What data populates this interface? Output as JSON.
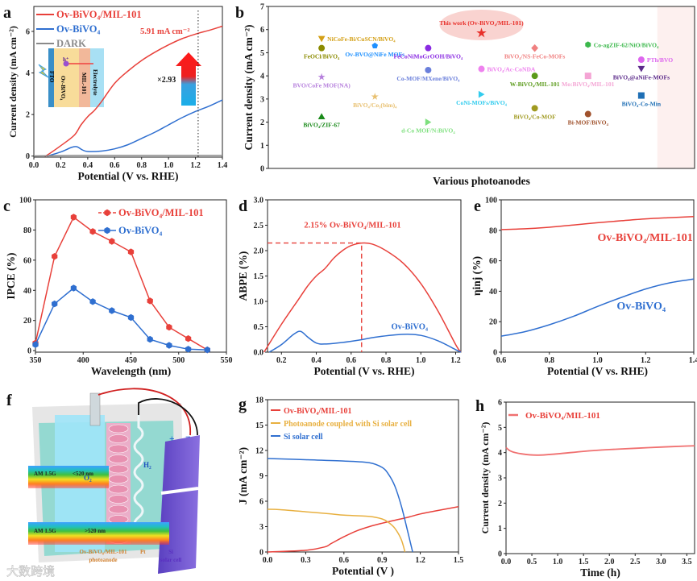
{
  "colors": {
    "red": "#e8403a",
    "blue": "#2f6fd0",
    "gray": "#8a8a8a",
    "orange": "#e8b040",
    "shade": "#fbe3e1",
    "axis": "#222222"
  },
  "chart_data": [
    {
      "id": "a",
      "panel_label": "a",
      "type": "line",
      "xlabel": "Potential (V vs. RHE)",
      "ylabel": "Current density (mA cm⁻²)",
      "xlim": [
        0,
        1.4
      ],
      "ylim": [
        -0.05,
        7.2
      ],
      "xticks": [
        0,
        0.2,
        0.4,
        0.6,
        0.8,
        1.0,
        1.2,
        1.4
      ],
      "xtick_labels": [
        "0.0",
        "0.2",
        "0.4",
        "0.6",
        "0.8",
        "1.0",
        "1.2",
        "1.4"
      ],
      "yticks": [
        0,
        2,
        4,
        6
      ],
      "ytick_labels": [
        "0",
        "2",
        "4",
        "6"
      ],
      "legend_placement": "top-left",
      "series": [
        {
          "name": "Ov-BiVO₄/MIL-101",
          "color": "#e8403a",
          "x": [
            0.08,
            0.1,
            0.2,
            0.3,
            0.35,
            0.4,
            0.45,
            0.5,
            0.6,
            0.7,
            0.8,
            0.9,
            1.0,
            1.1,
            1.22,
            1.3,
            1.4
          ],
          "y": [
            0,
            0.05,
            0.5,
            1.0,
            1.5,
            1.9,
            2.2,
            2.6,
            3.5,
            4.1,
            4.6,
            5.0,
            5.35,
            5.65,
            5.91,
            6.05,
            6.25
          ]
        },
        {
          "name": "Ov-BiVO₄",
          "color": "#2f6fd0",
          "x": [
            0.1,
            0.2,
            0.28,
            0.32,
            0.36,
            0.4,
            0.5,
            0.6,
            0.7,
            0.8,
            0.9,
            1.0,
            1.1,
            1.2,
            1.3,
            1.4
          ],
          "y": [
            0,
            0.2,
            0.42,
            0.45,
            0.3,
            0.22,
            0.24,
            0.35,
            0.55,
            0.85,
            1.15,
            1.5,
            1.85,
            2.15,
            2.4,
            2.7
          ]
        },
        {
          "name": "DARK",
          "color": "#8a8a8a",
          "x": [
            0,
            0.3,
            0.5,
            1.4
          ],
          "y": [
            0.01,
            0.03,
            0.03,
            0.03
          ]
        }
      ],
      "annotations": {
        "value_label": "5.91 mA cm⁻²",
        "marker_potential": 1.22,
        "enhancement": "×2.93",
        "inset_layers": [
          "FTO",
          "Ov-BiVO₄",
          "MIL-101",
          "Electrolyte"
        ],
        "hole_label": "h⁺"
      }
    },
    {
      "id": "b",
      "panel_label": "b",
      "type": "scatter",
      "xlabel": "Various photoanodes",
      "ylabel": "Current density (mA cm⁻²)",
      "xlim": [
        0,
        8
      ],
      "ylim": [
        0,
        7
      ],
      "yticks": [
        0,
        1,
        2,
        3,
        4,
        5,
        6,
        7
      ],
      "ytick_labels": [
        "0",
        "1",
        "2",
        "3",
        "4",
        "5",
        "6",
        "7"
      ],
      "points": [
        {
          "label": "NiCoFe-Bi/CuSCN/BiVO₄",
          "x": 1,
          "y": 5.6,
          "color": "#d4a017",
          "shape": "triangle-down",
          "label_position": "right"
        },
        {
          "label": "FeOCl/BiVO₄",
          "x": 1,
          "y": 5.2,
          "color": "#8b8b00",
          "shape": "circle",
          "label_position": "below"
        },
        {
          "label": "BVO/CoFe MOF(NA)",
          "x": 1,
          "y": 3.95,
          "color": "#b57edc",
          "shape": "star",
          "label_position": "below"
        },
        {
          "label": "BiVO₄/ZIF-67",
          "x": 1,
          "y": 2.25,
          "color": "#1a8a1a",
          "shape": "triangle-up",
          "label_position": "below"
        },
        {
          "label": "Ov-BVO@NiFe MOFs",
          "x": 2,
          "y": 5.3,
          "color": "#1e90ff",
          "shape": "pentagon",
          "label_position": "below"
        },
        {
          "label": "BiVO₄/Co₃(bim)₄",
          "x": 2,
          "y": 3.1,
          "color": "#e8c070",
          "shape": "star",
          "label_position": "below"
        },
        {
          "label": "FeCoNiMoGrOOH/BiVO₄",
          "x": 3,
          "y": 5.2,
          "color": "#8a2be2",
          "shape": "circle",
          "label_position": "below"
        },
        {
          "label": "Co-MOF/MXene/BiVO₄",
          "x": 3,
          "y": 4.25,
          "color": "#6a7fdb",
          "shape": "circle",
          "label_position": "below"
        },
        {
          "label": "d-Co MOF/N:BiVO₄",
          "x": 3,
          "y": 2.0,
          "color": "#7ee07e",
          "shape": "triangle-right",
          "label_position": "below"
        },
        {
          "label": "This work (Ov-BiVO₄/MIL-101)",
          "x": 4,
          "y": 5.85,
          "color": "#e8302a",
          "shape": "star",
          "label_position": "above"
        },
        {
          "label": "BiVO₄/Ac-CoNDA",
          "x": 4,
          "y": 4.3,
          "color": "#ee82ee",
          "shape": "circle",
          "label_position": "right"
        },
        {
          "label": "CoNi-MOFs/BiVO₄",
          "x": 4,
          "y": 3.2,
          "color": "#33ccee",
          "shape": "triangle-right",
          "label_position": "below"
        },
        {
          "label": "BiVO₄/NS-FeCo-MOFs",
          "x": 5,
          "y": 5.2,
          "color": "#f08080",
          "shape": "diamond",
          "label_position": "below"
        },
        {
          "label": "W-BiVO₄/MIL-101",
          "x": 5,
          "y": 4.0,
          "color": "#5a9a1a",
          "shape": "circle",
          "label_position": "below"
        },
        {
          "label": "BiVO₄/Co-MOF",
          "x": 5,
          "y": 2.6,
          "color": "#a09a20",
          "shape": "circle",
          "label_position": "below"
        },
        {
          "label": "Co-agZIF-62/NiO/BiVO₄",
          "x": 6,
          "y": 5.35,
          "color": "#3cb84c",
          "shape": "hexagon",
          "label_position": "right"
        },
        {
          "label": "Mo:BiVO₄/MIL-101",
          "x": 6,
          "y": 4.0,
          "color": "#f4a4d4",
          "shape": "square",
          "label_position": "below"
        },
        {
          "label": "Bi-MOF/BiVO₄",
          "x": 6,
          "y": 2.35,
          "color": "#a0522d",
          "shape": "circle",
          "label_position": "below"
        },
        {
          "label": "PTh/BVO",
          "x": 7,
          "y": 4.7,
          "color": "#dd66ee",
          "shape": "circle",
          "label_position": "right"
        },
        {
          "label": "BiVO₄@aNiFe-MOFs",
          "x": 7,
          "y": 4.3,
          "color": "#5b2a8a",
          "shape": "triangle-down",
          "label_position": "below"
        },
        {
          "label": "BiVO₄-Co-Min",
          "x": 7,
          "y": 3.15,
          "color": "#1f6fb5",
          "shape": "square",
          "label_position": "below"
        }
      ]
    },
    {
      "id": "c",
      "panel_label": "c",
      "type": "line",
      "xlabel": "Wavelength (nm)",
      "ylabel": "IPCE (%)",
      "xlim": [
        350,
        550
      ],
      "ylim": [
        -1,
        100
      ],
      "xticks": [
        350,
        400,
        450,
        500,
        550
      ],
      "xtick_labels": [
        "350",
        "400",
        "450",
        "500",
        "550"
      ],
      "yticks": [
        0,
        20,
        40,
        60,
        80,
        100
      ],
      "ytick_labels": [
        "0",
        "20",
        "40",
        "60",
        "80",
        "100"
      ],
      "legend_placement": "top-right",
      "markers": true,
      "series": [
        {
          "name": "Ov-BiVO₄/MIL-101",
          "color": "#e8403a",
          "x": [
            350,
            370,
            390,
            410,
            430,
            450,
            470,
            490,
            510,
            530
          ],
          "y": [
            5,
            62.5,
            88.5,
            79,
            72.5,
            65.5,
            33,
            15.5,
            8,
            0.5
          ]
        },
        {
          "name": "Ov-BiVO₄",
          "color": "#2f6fd0",
          "x": [
            350,
            370,
            390,
            410,
            430,
            450,
            470,
            490,
            510,
            530
          ],
          "y": [
            4,
            31,
            41.5,
            32.5,
            26.5,
            22,
            7.5,
            3.5,
            1,
            0.5
          ]
        }
      ]
    },
    {
      "id": "d",
      "panel_label": "d",
      "type": "line",
      "xlabel": "Potential (V vs. RHE)",
      "ylabel": "ABPE (%)",
      "xlim": [
        0.12,
        1.23
      ],
      "ylim": [
        0,
        3.0
      ],
      "xticks": [
        0.2,
        0.4,
        0.6,
        0.8,
        1.0,
        1.2
      ],
      "xtick_labels": [
        "0.2",
        "0.4",
        "0.6",
        "0.8",
        "1.0",
        "1.2"
      ],
      "yticks": [
        0,
        0.5,
        1.0,
        1.5,
        2.0,
        2.5,
        3.0
      ],
      "ytick_labels": [
        "0.0",
        "0.5",
        "1.0",
        "1.5",
        "2.0",
        "2.5",
        "3.0"
      ],
      "series": [
        {
          "name": "Ov-BiVO₄/MIL-101",
          "color": "#e8403a",
          "x": [
            0.1,
            0.2,
            0.3,
            0.35,
            0.4,
            0.45,
            0.5,
            0.55,
            0.6,
            0.66,
            0.72,
            0.8,
            0.9,
            1.0,
            1.1,
            1.2,
            1.23
          ],
          "y": [
            0,
            0.55,
            1.05,
            1.3,
            1.5,
            1.65,
            1.85,
            2.0,
            2.1,
            2.15,
            2.13,
            2.0,
            1.75,
            1.35,
            0.8,
            0.15,
            0
          ]
        },
        {
          "name": "Ov-BiVO₄",
          "color": "#2f6fd0",
          "x": [
            0.13,
            0.2,
            0.27,
            0.31,
            0.35,
            0.4,
            0.45,
            0.55,
            0.65,
            0.75,
            0.9,
            1.0,
            1.1,
            1.2,
            1.23
          ],
          "y": [
            0,
            0.15,
            0.35,
            0.41,
            0.3,
            0.18,
            0.16,
            0.19,
            0.24,
            0.3,
            0.35,
            0.33,
            0.22,
            0.05,
            0
          ]
        }
      ],
      "annotations": {
        "peak_label": "2.15%  Ov-BiVO₄/MIL-101",
        "peak_x": 0.66,
        "peak_y": 2.15,
        "blue_label": "Ov-BiVO₄"
      }
    },
    {
      "id": "e",
      "panel_label": "e",
      "type": "line",
      "xlabel": "Potential (V vs. RHE)",
      "ylabel": "ηinj (%)",
      "xlim": [
        0.6,
        1.4
      ],
      "ylim": [
        0,
        100
      ],
      "xticks": [
        0.6,
        0.8,
        1.0,
        1.2,
        1.4
      ],
      "xtick_labels": [
        "0.6",
        "0.8",
        "1.0",
        "1.2",
        "1.4"
      ],
      "yticks": [
        0,
        20,
        40,
        60,
        80,
        100
      ],
      "ytick_labels": [
        "0",
        "20",
        "40",
        "60",
        "80",
        "100"
      ],
      "series": [
        {
          "name": "Ov-BiVO₄/MIL-101",
          "color": "#e8403a",
          "x": [
            0.6,
            0.7,
            0.8,
            0.9,
            1.0,
            1.1,
            1.2,
            1.3,
            1.4
          ],
          "y": [
            80.5,
            81,
            82,
            83.5,
            85,
            86.3,
            87.5,
            88.3,
            89
          ]
        },
        {
          "name": "Ov-BiVO₄",
          "color": "#2f6fd0",
          "x": [
            0.6,
            0.7,
            0.8,
            0.9,
            1.0,
            1.1,
            1.2,
            1.3,
            1.4
          ],
          "y": [
            10.5,
            13.5,
            18,
            23.5,
            30,
            36,
            41.5,
            45.5,
            48
          ]
        }
      ]
    },
    {
      "id": "g",
      "panel_label": "g",
      "type": "line",
      "xlabel": "Potential (V )",
      "ylabel": "J (mA cm⁻²)",
      "xlim": [
        0,
        1.5
      ],
      "ylim": [
        0,
        18
      ],
      "xticks": [
        0,
        0.3,
        0.6,
        0.9,
        1.2,
        1.5
      ],
      "xtick_labels": [
        "0.0",
        "0.3",
        "0.6",
        "0.9",
        "1.2",
        "1.5"
      ],
      "yticks": [
        0,
        3,
        6,
        9,
        12,
        15,
        18
      ],
      "ytick_labels": [
        "0",
        "3",
        "6",
        "9",
        "12",
        "15",
        "18"
      ],
      "legend_placement": "top-left",
      "series": [
        {
          "name": "Ov-BiVO₄/MIL-101",
          "color": "#e8403a",
          "x": [
            0,
            0.3,
            0.45,
            0.5,
            0.6,
            0.7,
            0.8,
            0.9,
            1.0,
            1.1,
            1.2,
            1.3,
            1.5
          ],
          "y": [
            0,
            0.2,
            0.6,
            1.0,
            1.8,
            2.5,
            3.0,
            3.4,
            3.75,
            4.1,
            4.5,
            4.8,
            5.35
          ]
        },
        {
          "name": "Photoanode coupled with Si solar cell",
          "color": "#e8b040",
          "x": [
            0,
            0.1,
            0.3,
            0.5,
            0.6,
            0.8,
            0.9,
            0.95,
            1.0,
            1.05,
            1.08
          ],
          "y": [
            5.05,
            5.0,
            4.75,
            4.5,
            4.35,
            4.2,
            3.9,
            3.5,
            2.8,
            1.5,
            0
          ]
        },
        {
          "name": "Si solar cell",
          "color": "#2f6fd0",
          "x": [
            0,
            0.3,
            0.6,
            0.8,
            0.9,
            0.95,
            1.0,
            1.05,
            1.1,
            1.14
          ],
          "y": [
            11.05,
            10.9,
            10.75,
            10.55,
            10.0,
            9.2,
            7.8,
            5.5,
            2.5,
            0
          ]
        }
      ]
    },
    {
      "id": "h",
      "panel_label": "h",
      "type": "line",
      "xlabel": "Time (h)",
      "ylabel": "Current density (mA cm⁻²)",
      "xlim": [
        0,
        3.65
      ],
      "ylim": [
        0,
        6
      ],
      "xticks": [
        0,
        0.5,
        1.0,
        1.5,
        2.0,
        2.5,
        3.0,
        3.5
      ],
      "xtick_labels": [
        "0.0",
        "0.5",
        "1.0",
        "1.5",
        "2.0",
        "2.5",
        "3.0",
        "3.5"
      ],
      "yticks": [
        0,
        1,
        2,
        3,
        4,
        5,
        6
      ],
      "ytick_labels": [
        "0",
        "1",
        "2",
        "3",
        "4",
        "5",
        "6"
      ],
      "legend_placement": "top-left",
      "series": [
        {
          "name": "Ov-BiVO₄/MIL-101",
          "color": "#f07070",
          "x": [
            0,
            0.1,
            0.3,
            0.6,
            1.0,
            1.5,
            2.0,
            2.5,
            3.0,
            3.5,
            3.65
          ],
          "y": [
            4.2,
            4.05,
            3.95,
            3.9,
            3.95,
            4.05,
            4.12,
            4.17,
            4.22,
            4.26,
            4.27
          ]
        }
      ]
    }
  ],
  "schematic_f": {
    "panel_label": "f",
    "beam_upper": {
      "source": "AM 1.5G",
      "range": "<520 nm"
    },
    "beam_lower": {
      "source": "AM 1.5G",
      "range": ">520 nm"
    },
    "o2": "O₂",
    "h2": "H₂",
    "photoanode": [
      "Ov-BiVO₄/MIL-101",
      "photoanode"
    ],
    "cathode": "Pt",
    "solar_cell": [
      "Si",
      "solar cell"
    ],
    "plus": "+",
    "minus": "−",
    "watermark": "大数跨境"
  }
}
